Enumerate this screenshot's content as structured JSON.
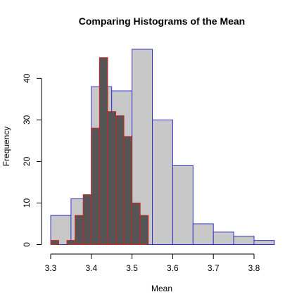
{
  "chart_data": {
    "type": "bar",
    "title": "Comparing Histograms of the Mean",
    "xlabel": "Mean",
    "ylabel": "Frequency",
    "xlim": [
      3.3,
      3.85
    ],
    "ylim": [
      0,
      47
    ],
    "x_ticks": [
      "3.3",
      "3.4",
      "3.5",
      "3.6",
      "3.7",
      "3.8"
    ],
    "y_ticks": [
      "0",
      "10",
      "20",
      "30",
      "40"
    ],
    "grid": false,
    "legend": "none",
    "series": [
      {
        "fill_color": "#c8c8c8",
        "border_color": "#3333cc",
        "bins": [
          {
            "x0": 3.3,
            "x1": 3.35,
            "count": 7
          },
          {
            "x0": 3.35,
            "x1": 3.4,
            "count": 11
          },
          {
            "x0": 3.4,
            "x1": 3.45,
            "count": 38
          },
          {
            "x0": 3.45,
            "x1": 3.5,
            "count": 37
          },
          {
            "x0": 3.5,
            "x1": 3.55,
            "count": 47
          },
          {
            "x0": 3.55,
            "x1": 3.6,
            "count": 30
          },
          {
            "x0": 3.6,
            "x1": 3.65,
            "count": 19
          },
          {
            "x0": 3.65,
            "x1": 3.7,
            "count": 5
          },
          {
            "x0": 3.7,
            "x1": 3.75,
            "count": 3
          },
          {
            "x0": 3.75,
            "x1": 3.8,
            "count": 2
          },
          {
            "x0": 3.8,
            "x1": 3.85,
            "count": 1
          }
        ]
      },
      {
        "fill_color": "#555555",
        "border_color": "#cc2222",
        "bins": [
          {
            "x0": 3.3,
            "x1": 3.32,
            "count": 1
          },
          {
            "x0": 3.32,
            "x1": 3.34,
            "count": 0
          },
          {
            "x0": 3.34,
            "x1": 3.36,
            "count": 1
          },
          {
            "x0": 3.36,
            "x1": 3.38,
            "count": 7
          },
          {
            "x0": 3.38,
            "x1": 3.4,
            "count": 12
          },
          {
            "x0": 3.4,
            "x1": 3.42,
            "count": 28
          },
          {
            "x0": 3.42,
            "x1": 3.44,
            "count": 45
          },
          {
            "x0": 3.44,
            "x1": 3.46,
            "count": 32
          },
          {
            "x0": 3.46,
            "x1": 3.48,
            "count": 31
          },
          {
            "x0": 3.48,
            "x1": 3.5,
            "count": 26
          },
          {
            "x0": 3.5,
            "x1": 3.52,
            "count": 10
          },
          {
            "x0": 3.52,
            "x1": 3.54,
            "count": 7
          }
        ]
      }
    ]
  }
}
